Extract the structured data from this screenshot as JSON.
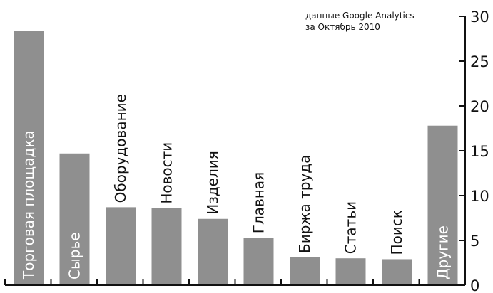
{
  "annotation": {
    "line1": "данные Google Analytics",
    "line2": "за Октябрь 2010"
  },
  "colors": {
    "bar": "#8f8f8f",
    "axis": "#111111",
    "inside_label": "#ffffff",
    "outside_label": "#111111"
  },
  "chart_data": {
    "type": "bar",
    "categories": [
      "Торговая площадка",
      "Сырье",
      "Оборудование",
      "Новости",
      "Изделия",
      "Главная",
      "Биржа труда",
      "Статьи",
      "Поиск",
      "Другие"
    ],
    "values": [
      28.4,
      14.7,
      8.7,
      8.6,
      7.4,
      5.3,
      3.1,
      3.0,
      2.9,
      17.8
    ],
    "label_inside": [
      true,
      true,
      false,
      false,
      false,
      false,
      false,
      false,
      false,
      true
    ],
    "ylim": [
      0,
      30
    ],
    "y_ticks": [
      0,
      5,
      10,
      15,
      20,
      25,
      30
    ],
    "y_axis_position": "right",
    "grid": false,
    "title": "",
    "xlabel": "",
    "ylabel": ""
  }
}
